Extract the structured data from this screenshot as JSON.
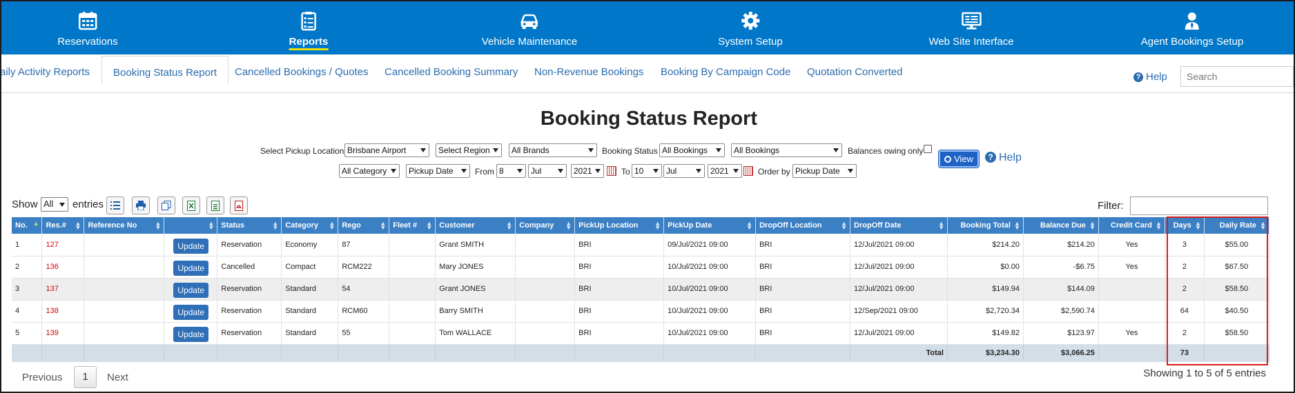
{
  "nav": [
    {
      "label": "Reservations",
      "icon": "calendar-icon"
    },
    {
      "label": "Reports",
      "icon": "report-list-icon",
      "active": true
    },
    {
      "label": "Vehicle Maintenance",
      "icon": "car-icon"
    },
    {
      "label": "System Setup",
      "icon": "gear-icon"
    },
    {
      "label": "Web Site Interface",
      "icon": "monitor-icon"
    },
    {
      "label": "Agent Bookings Setup",
      "icon": "agent-icon"
    }
  ],
  "tabs": [
    {
      "label": "aily Activity Reports"
    },
    {
      "label": "Booking Status Report",
      "active": true
    },
    {
      "label": "Cancelled Bookings / Quotes"
    },
    {
      "label": "Cancelled Booking Summary"
    },
    {
      "label": "Non-Revenue Bookings"
    },
    {
      "label": "Booking By Campaign Code"
    },
    {
      "label": "Quotation Converted"
    }
  ],
  "help_label": "Help",
  "search_placeholder": "Search",
  "page_title": "Booking Status Report",
  "filters": {
    "pickup_location_label": "Select Pickup Location",
    "pickup_location": "Brisbane Airport",
    "region": "Select Region",
    "brands": "All Brands",
    "booking_status_label": "Booking Status",
    "booking_status": "All Bookings",
    "bookings_type": "All Bookings",
    "balances_label": "Balances owing only",
    "category": "All Category",
    "date_type": "Pickup Date",
    "from_label": "From",
    "from_day": "8",
    "from_month": "Jul",
    "from_year": "2021",
    "to_label": "To",
    "to_day": "10",
    "to_month": "Jul",
    "to_year": "2021",
    "order_by_label": "Order by",
    "order_by": "Pickup Date",
    "view_label": "View",
    "help_label": "Help"
  },
  "toolbar": {
    "show_label": "Show",
    "show_value": "All",
    "entries_label": "entries",
    "filter_label": "Filter:"
  },
  "table": {
    "headers": [
      "No.",
      "Res.#",
      "Reference No",
      "",
      "Status",
      "Category",
      "Rego",
      "Fleet #",
      "Customer",
      "Company",
      "PickUp Location",
      "PickUp Date",
      "DropOff Location",
      "DropOff Date",
      "Booking Total",
      "Balance Due",
      "Credit Card",
      "Days",
      "Daily Rate"
    ],
    "update_label": "Update",
    "rows": [
      {
        "no": "1",
        "res": "127",
        "ref": "",
        "status": "Reservation",
        "category": "Economy",
        "rego": "87",
        "fleet": "",
        "customer": "Grant SMITH",
        "company": "",
        "pu_loc": "BRI",
        "pu_date": "09/Jul/2021 09:00",
        "do_loc": "BRI",
        "do_date": "12/Jul/2021 09:00",
        "total": "$214.20",
        "balance": "$214.20",
        "cc": "Yes",
        "days": "3",
        "rate": "$55.00"
      },
      {
        "no": "2",
        "res": "136",
        "ref": "",
        "status": "Cancelled",
        "category": "Compact",
        "rego": "RCM222",
        "fleet": "",
        "customer": "Mary JONES",
        "company": "",
        "pu_loc": "BRI",
        "pu_date": "10/Jul/2021 09:00",
        "do_loc": "BRI",
        "do_date": "12/Jul/2021 09:00",
        "total": "$0.00",
        "balance": "-$6.75",
        "cc": "Yes",
        "days": "2",
        "rate": "$67.50"
      },
      {
        "no": "3",
        "res": "137",
        "ref": "",
        "status": "Reservation",
        "category": "Standard",
        "rego": "54",
        "fleet": "",
        "customer": "Grant JONES",
        "company": "",
        "pu_loc": "BRI",
        "pu_date": "10/Jul/2021 09:00",
        "do_loc": "BRI",
        "do_date": "12/Jul/2021 09:00",
        "total": "$149.94",
        "balance": "$144.09",
        "cc": "",
        "days": "2",
        "rate": "$58.50"
      },
      {
        "no": "4",
        "res": "138",
        "ref": "",
        "status": "Reservation",
        "category": "Standard",
        "rego": "RCM60",
        "fleet": "",
        "customer": "Barry SMITH",
        "company": "",
        "pu_loc": "BRI",
        "pu_date": "10/Jul/2021 09:00",
        "do_loc": "BRI",
        "do_date": "12/Sep/2021 09:00",
        "total": "$2,720.34",
        "balance": "$2,590.74",
        "cc": "",
        "days": "64",
        "rate": "$40.50"
      },
      {
        "no": "5",
        "res": "139",
        "ref": "",
        "status": "Reservation",
        "category": "Standard",
        "rego": "55",
        "fleet": "",
        "customer": "Tom WALLACE",
        "company": "",
        "pu_loc": "BRI",
        "pu_date": "10/Jul/2021 09:00",
        "do_loc": "BRI",
        "do_date": "12/Jul/2021 09:00",
        "total": "$149.82",
        "balance": "$123.97",
        "cc": "Yes",
        "days": "2",
        "rate": "$58.50"
      }
    ],
    "footer": {
      "label": "Total",
      "total": "$3,234.30",
      "balance": "$3,066.25",
      "days": "73"
    }
  },
  "pagination": {
    "previous": "Previous",
    "page": "1",
    "next": "Next",
    "showing": "Showing 1 to 5 of 5 entries"
  },
  "colors": {
    "nav_bg": "#0077c8",
    "header_bg": "#3b7fc4",
    "highlight": "#d41a1a",
    "res_link": "#d40000"
  }
}
